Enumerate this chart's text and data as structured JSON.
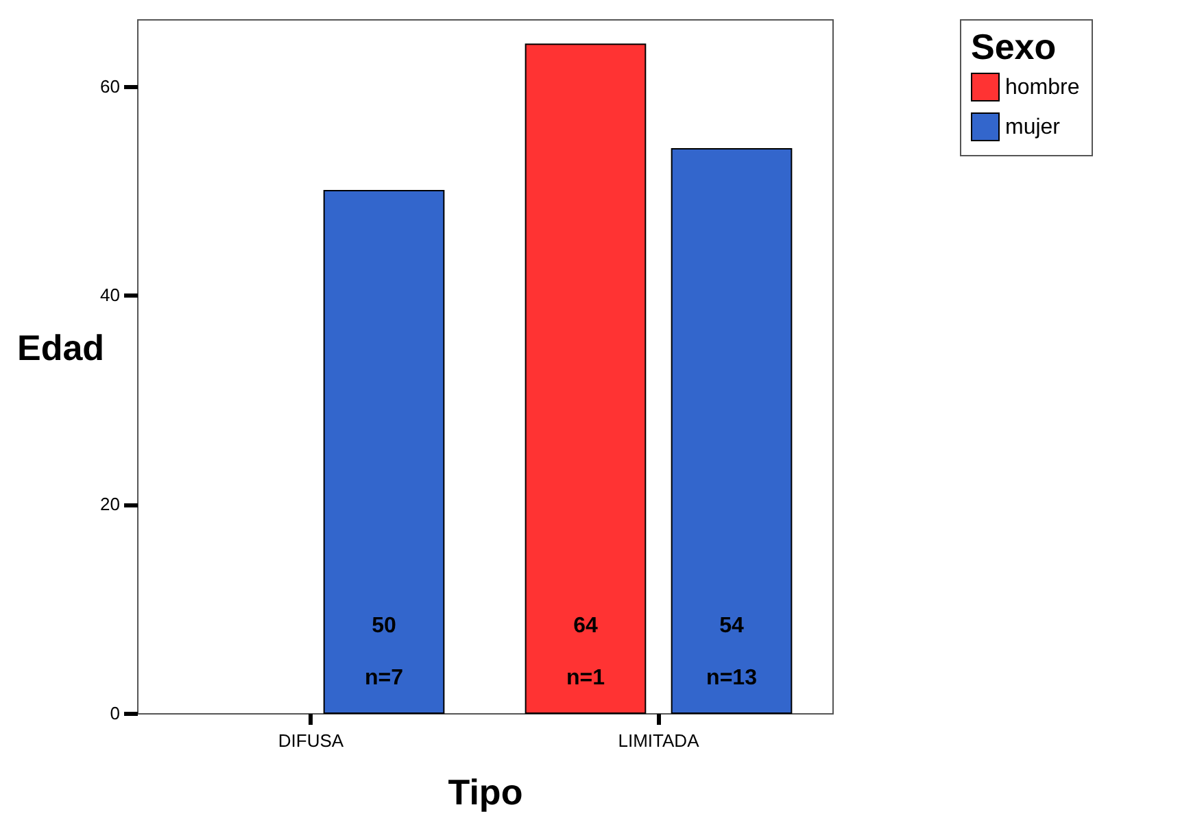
{
  "chart_data": {
    "type": "bar",
    "xlabel": "Tipo",
    "ylabel": "Edad",
    "legend_title": "Sexo",
    "categories": [
      "DIFUSA",
      "LIMITADA"
    ],
    "series": [
      {
        "name": "hombre",
        "color": "#ff3333",
        "values": [
          null,
          64
        ],
        "value_labels": [
          null,
          "64\nn=1"
        ]
      },
      {
        "name": "mujer",
        "color": "#3366cc",
        "values": [
          50,
          54
        ],
        "value_labels": [
          "50\nn=7",
          "54\nn=13"
        ]
      }
    ],
    "ylim": [
      0,
      66.4
    ],
    "yticks": [
      0,
      20,
      40,
      60
    ],
    "grid": false,
    "legend": "top right"
  }
}
